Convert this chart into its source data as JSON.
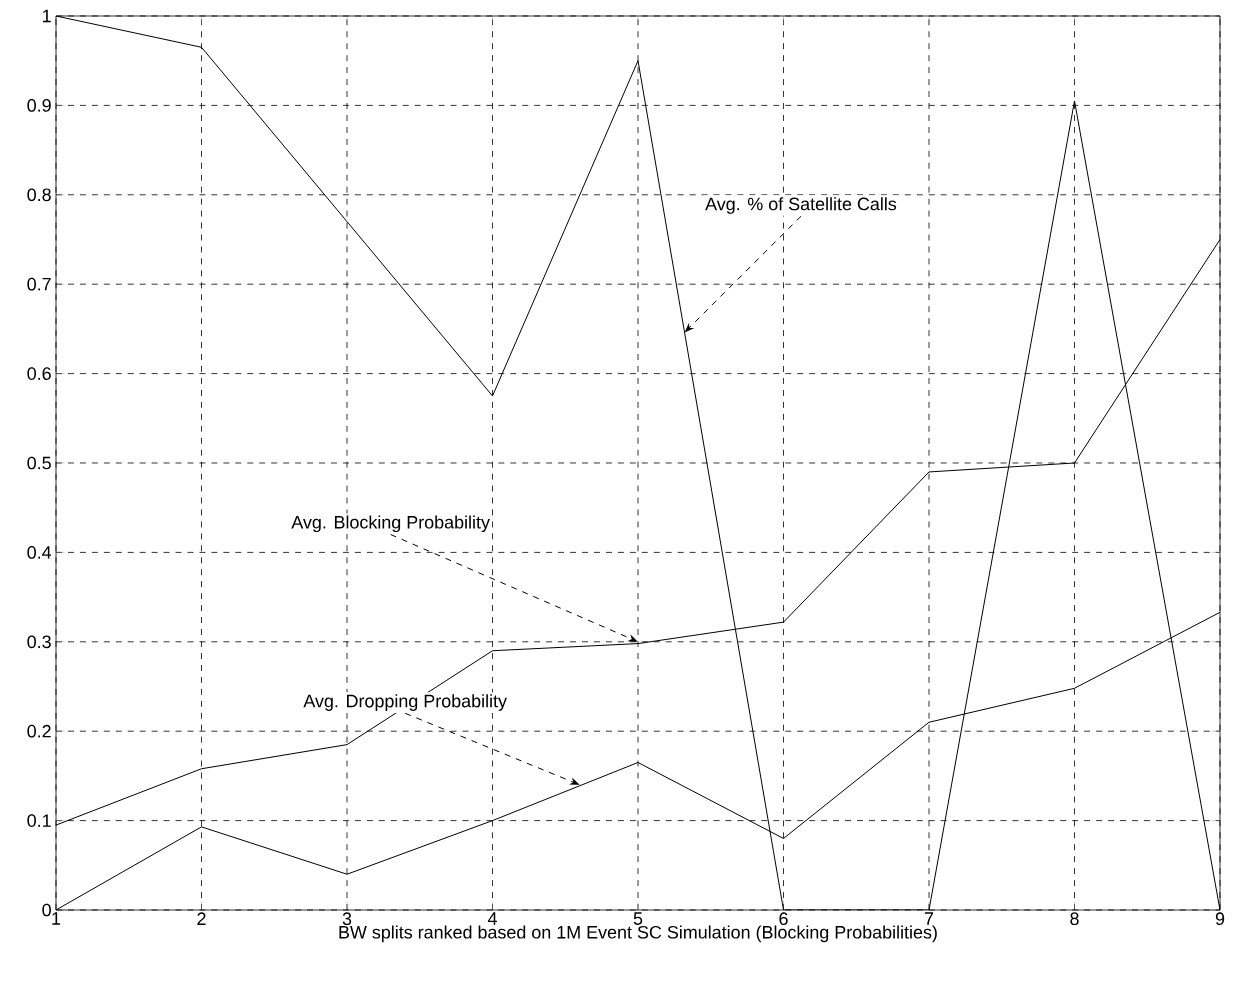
{
  "chart_data": {
    "type": "line",
    "xlabel": "BW splits ranked based on 1M Event SC Simulation (Blocking Probabilities)",
    "x": [
      1,
      2,
      3,
      4,
      5,
      6,
      7,
      8,
      9
    ],
    "series": [
      {
        "color": "#000000",
        "values": [
          1.0,
          0.965,
          0.77,
          0.575,
          0.95,
          0,
          0,
          0.905,
          0
        ]
      },
      {
        "color": "#000000",
        "values": [
          0.095,
          0.158,
          0.185,
          0.29,
          0.298,
          0.322,
          0.49,
          0.5,
          0.75
        ]
      },
      {
        "color": "#000000",
        "values": [
          0,
          0.093,
          0.04,
          0.1,
          0.165,
          0.08,
          0.21,
          0.248,
          0.333
        ]
      }
    ],
    "annotations": [
      {
        "text": "Avg. % of Satellite Calls",
        "x": 5.32,
        "y": 0.646
      },
      {
        "text": "Avg. Blocking Probability",
        "x": 5.0,
        "y": 0.3
      },
      {
        "text": "Avg. Dropping Probability",
        "x": 4.6,
        "y": 0.14
      }
    ],
    "xlim": [
      1,
      9
    ],
    "ylim": [
      0,
      1
    ],
    "xticks": [
      1,
      2,
      3,
      4,
      5,
      6,
      7,
      8,
      9
    ],
    "yticks": [
      0,
      0.1,
      0.2,
      0.3,
      0.4,
      0.5,
      0.6,
      0.7,
      0.8,
      0.9,
      1
    ],
    "grid": true,
    "line_style": "solid",
    "marker": "none"
  }
}
